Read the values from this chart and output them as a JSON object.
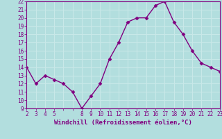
{
  "x": [
    2,
    3,
    4,
    5,
    6,
    7,
    8,
    9,
    10,
    11,
    12,
    13,
    14,
    15,
    16,
    17,
    18,
    19,
    20,
    21,
    22,
    23
  ],
  "y": [
    14,
    12,
    13,
    12.5,
    12,
    11,
    9,
    10.5,
    12,
    15,
    17,
    19.5,
    20,
    20,
    21.5,
    22,
    19.5,
    18,
    16,
    14.5,
    14,
    13.5
  ],
  "xlim": [
    2,
    23
  ],
  "ylim": [
    9,
    22
  ],
  "xtick_locs": [
    2,
    3,
    4,
    5,
    6,
    7,
    8,
    9,
    10,
    11,
    12,
    13,
    14,
    15,
    16,
    17,
    18,
    19,
    20,
    21,
    22,
    23
  ],
  "xtick_labels": [
    "2",
    "3",
    "4",
    "5",
    "",
    "",
    "8",
    "9",
    "10",
    "11",
    "12",
    "13",
    "14",
    "15",
    "16",
    "17",
    "18",
    "19",
    "20",
    "21",
    "22",
    "23"
  ],
  "yticks": [
    9,
    10,
    11,
    12,
    13,
    14,
    15,
    16,
    17,
    18,
    19,
    20,
    21,
    22
  ],
  "xlabel": "Windchill (Refroidissement éolien,°C)",
  "line_color": "#800080",
  "marker_color": "#800080",
  "bg_color": "#b2dede",
  "grid_color": "#c8e8e8",
  "border_color": "#800080",
  "tick_color": "#800080",
  "label_color": "#800080",
  "marker": "D",
  "marker_size": 2.5,
  "linewidth": 1.0,
  "xlabel_fontsize": 6.5,
  "tick_fontsize": 5.5
}
